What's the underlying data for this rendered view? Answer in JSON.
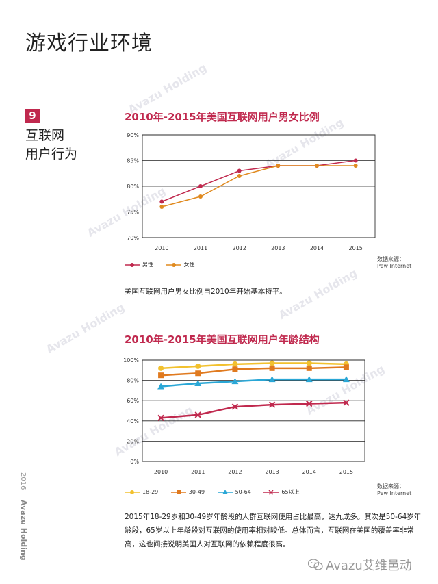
{
  "page": {
    "title": "游戏行业环境",
    "section_number": "9",
    "section_label_line1": "互联网",
    "section_label_line2": "用户行为",
    "side_year": "2016",
    "side_brand": "Avazu Holding",
    "watermark_text": "Avazu Holding",
    "wechat_footer": "Avazu艾维邑动"
  },
  "chart_data": [
    {
      "type": "line",
      "title": "2010年-2015年美国互联网用户男女比例",
      "x": [
        "2010",
        "2011",
        "2012",
        "2013",
        "2014",
        "2015"
      ],
      "ylim": [
        70,
        90
      ],
      "yticks": [
        "70%",
        "75%",
        "80%",
        "85%",
        "90%"
      ],
      "grid": true,
      "series": [
        {
          "name": "男性",
          "values": [
            77,
            80,
            83,
            84,
            84,
            85
          ],
          "color": "#c0294e"
        },
        {
          "name": "女性",
          "values": [
            76,
            78,
            82,
            84,
            84,
            84
          ],
          "color": "#e08a1f"
        }
      ],
      "source_line1": "数据来源：",
      "source_line2": "Pew Internet",
      "caption": "美国互联网用户男女比例自2010年开始基本持平。"
    },
    {
      "type": "line",
      "title": "2010年-2015年美国互联网用户年龄结构",
      "x": [
        "2010",
        "2011",
        "2012",
        "2013",
        "2014",
        "2015"
      ],
      "ylim": [
        0,
        100
      ],
      "yticks": [
        "0%",
        "20%",
        "40%",
        "60%",
        "80%",
        "100%"
      ],
      "grid": true,
      "series": [
        {
          "name": "18-29",
          "values": [
            92,
            94,
            96,
            97,
            97,
            96
          ],
          "color": "#f2c12e",
          "marker": "circle"
        },
        {
          "name": "30-49",
          "values": [
            85,
            87,
            91,
            92,
            92,
            93
          ],
          "color": "#e07a1f",
          "marker": "square"
        },
        {
          "name": "50-64",
          "values": [
            74,
            77,
            79,
            81,
            81,
            81
          ],
          "color": "#2aa7d6",
          "marker": "triangle"
        },
        {
          "name": "65以上",
          "values": [
            43,
            46,
            54,
            56,
            57,
            58
          ],
          "color": "#c0294e",
          "marker": "x"
        }
      ],
      "source_line1": "数据来源：",
      "source_line2": "Pew Internet",
      "caption": "2015年18-29岁和30-49岁年龄段的人群互联网使用占比最高，达九成多。其次是50-64岁年龄段，65岁以上年龄段对互联网的使用率相对较低。总体而言，互联网在美国的覆盖率非常高，这也间接说明美国人对互联网的依赖程度很高。"
    }
  ]
}
